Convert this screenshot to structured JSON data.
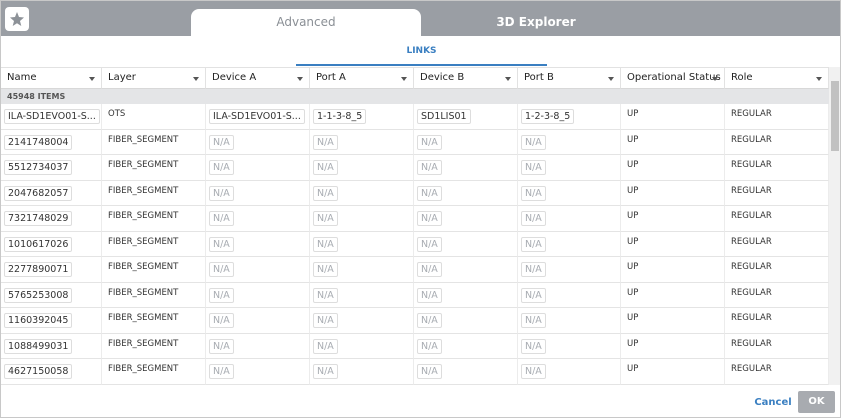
{
  "tabs": [
    "Advanced",
    "3D Explorer"
  ],
  "subtab": "LINKS",
  "columns": [
    "Name",
    "Layer",
    "Device A",
    "Port A",
    "Device B",
    "Port B",
    "Operational Status",
    "Role"
  ],
  "item_count": "45948 ITEMS",
  "rows": [
    [
      "ILA-SD1EVO01-S...",
      "OTS",
      "ILA-SD1EVO01-S...",
      "1-1-3-8_5",
      "SD1LIS01",
      "1-2-3-8_5",
      "UP",
      "REGULAR"
    ],
    [
      "2141748004",
      "FIBER_SEGMENT",
      "N/A",
      "N/A",
      "N/A",
      "N/A",
      "UP",
      "REGULAR"
    ],
    [
      "5512734037",
      "FIBER_SEGMENT",
      "N/A",
      "N/A",
      "N/A",
      "N/A",
      "UP",
      "REGULAR"
    ],
    [
      "2047682057",
      "FIBER_SEGMENT",
      "N/A",
      "N/A",
      "N/A",
      "N/A",
      "UP",
      "REGULAR"
    ],
    [
      "7321748029",
      "FIBER_SEGMENT",
      "N/A",
      "N/A",
      "N/A",
      "N/A",
      "UP",
      "REGULAR"
    ],
    [
      "1010617026",
      "FIBER_SEGMENT",
      "N/A",
      "N/A",
      "N/A",
      "N/A",
      "UP",
      "REGULAR"
    ],
    [
      "2277890071",
      "FIBER_SEGMENT",
      "N/A",
      "N/A",
      "N/A",
      "N/A",
      "UP",
      "REGULAR"
    ],
    [
      "5765253008",
      "FIBER_SEGMENT",
      "N/A",
      "N/A",
      "N/A",
      "N/A",
      "UP",
      "REGULAR"
    ],
    [
      "1160392045",
      "FIBER_SEGMENT",
      "N/A",
      "N/A",
      "N/A",
      "N/A",
      "UP",
      "REGULAR"
    ],
    [
      "1088499031",
      "FIBER_SEGMENT",
      "N/A",
      "N/A",
      "N/A",
      "N/A",
      "UP",
      "REGULAR"
    ],
    [
      "4627150058",
      "FIBER_SEGMENT",
      "N/A",
      "N/A",
      "N/A",
      "N/A",
      "UP",
      "REGULAR"
    ]
  ],
  "buttons": {
    "cancel": "Cancel",
    "ok": "OK"
  }
}
